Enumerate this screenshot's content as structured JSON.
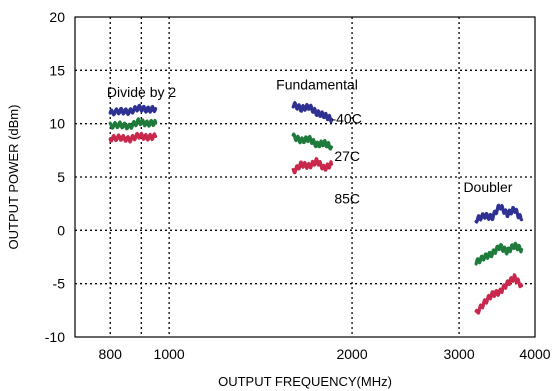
{
  "chart_data": {
    "type": "line",
    "xlabel": "OUTPUT FREQUENCY(MHz)",
    "ylabel": "OUTPUT POWER (dBm)",
    "xscale": "log",
    "xlim": [
      700,
      4000
    ],
    "ylim": [
      -10,
      20
    ],
    "xticks": [
      800,
      1000,
      2000,
      3000,
      4000
    ],
    "xtick_labels": [
      "800",
      "1000",
      "2000",
      "3000",
      "4000"
    ],
    "xgrid": [
      800,
      900,
      1000,
      2000,
      3000,
      4000
    ],
    "yticks": [
      -10,
      -5,
      0,
      5,
      10,
      15,
      20
    ],
    "ytick_labels": [
      "-10",
      "-5",
      "0",
      "5",
      "10",
      "15",
      "20"
    ],
    "ygrid": [
      -5,
      0,
      5,
      10,
      15
    ],
    "grid": "dotted",
    "series_colors": {
      "-40C": "#2e3192",
      "27C": "#1e7b3c",
      "85C": "#c8284c"
    },
    "series": [
      {
        "group": "Divide by 2",
        "temp": "-40C",
        "x": [
          800,
          830,
          860,
          890,
          920,
          950
        ],
        "y": [
          11.0,
          11.2,
          11.1,
          11.5,
          11.3,
          11.4
        ]
      },
      {
        "group": "Divide by 2",
        "temp": "27C",
        "x": [
          800,
          830,
          860,
          890,
          920,
          950
        ],
        "y": [
          9.8,
          9.9,
          9.7,
          10.2,
          10.0,
          10.1
        ]
      },
      {
        "group": "Divide by 2",
        "temp": "85C",
        "x": [
          800,
          830,
          860,
          890,
          920,
          950
        ],
        "y": [
          8.6,
          8.7,
          8.5,
          8.9,
          8.7,
          8.8
        ]
      },
      {
        "group": "Fundamental",
        "temp": "-40C",
        "x": [
          1600,
          1650,
          1700,
          1750,
          1800,
          1850
        ],
        "y": [
          11.8,
          11.4,
          11.6,
          11.0,
          10.8,
          10.4
        ]
      },
      {
        "group": "Fundamental",
        "temp": "27C",
        "x": [
          1600,
          1650,
          1700,
          1750,
          1800,
          1850
        ],
        "y": [
          8.8,
          8.4,
          8.6,
          8.0,
          8.2,
          7.8
        ]
      },
      {
        "group": "Fundamental",
        "temp": "85C",
        "x": [
          1600,
          1650,
          1700,
          1750,
          1800,
          1850
        ],
        "y": [
          5.5,
          6.2,
          6.0,
          6.5,
          5.8,
          6.2
        ]
      },
      {
        "group": "Doubler",
        "temp": "-40C",
        "x": [
          3200,
          3300,
          3400,
          3500,
          3600,
          3700,
          3800
        ],
        "y": [
          1.0,
          1.4,
          1.2,
          2.3,
          1.5,
          2.0,
          1.0
        ]
      },
      {
        "group": "Doubler",
        "temp": "27C",
        "x": [
          3200,
          3300,
          3400,
          3500,
          3600,
          3700,
          3800
        ],
        "y": [
          -3.0,
          -2.5,
          -2.2,
          -1.5,
          -2.0,
          -1.4,
          -1.8
        ]
      },
      {
        "group": "Doubler",
        "temp": "85C",
        "x": [
          3200,
          3300,
          3400,
          3500,
          3600,
          3700,
          3800
        ],
        "y": [
          -7.8,
          -6.8,
          -6.0,
          -5.8,
          -5.0,
          -4.4,
          -5.2
        ]
      }
    ],
    "annotations": [
      {
        "text": "Divide by 2",
        "x": 790,
        "y": 12.5
      },
      {
        "text": "Fundamental",
        "x": 1500,
        "y": 13.2
      },
      {
        "text": "-40C",
        "x": 1850,
        "y": 10.0
      },
      {
        "text": "27C",
        "x": 1870,
        "y": 6.5
      },
      {
        "text": "85C",
        "x": 1870,
        "y": 2.5
      },
      {
        "text": "Doubler",
        "x": 3050,
        "y": 3.6
      }
    ]
  }
}
